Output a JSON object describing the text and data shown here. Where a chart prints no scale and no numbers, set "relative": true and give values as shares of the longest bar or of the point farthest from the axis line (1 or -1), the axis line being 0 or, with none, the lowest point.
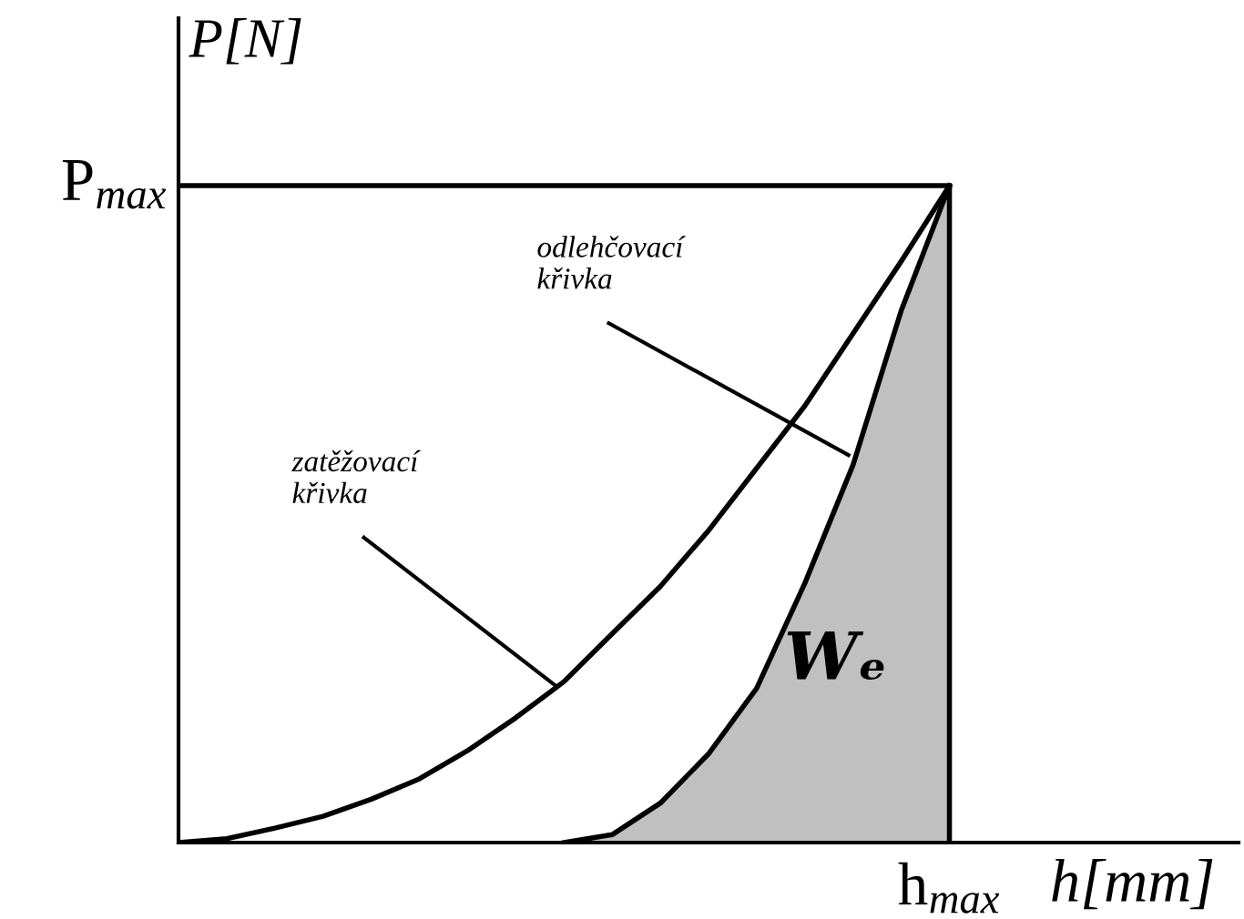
{
  "chart_data": {
    "type": "line",
    "relative": true,
    "xlabel": "h[mm]",
    "ylabel": "P[N]",
    "grid": false,
    "marker": "none",
    "line_style": "solid",
    "categories": [
      null,
      null,
      null,
      null,
      null,
      null,
      null,
      null,
      null,
      null,
      null,
      null,
      null,
      null,
      null,
      null,
      null,
      null,
      null,
      null,
      null,
      null,
      null
    ],
    "series": [
      {
        "color": "#000000",
        "values": [
          0,
          0.006,
          0.022,
          0.04,
          0.066,
          0.097,
          0.14,
          0.19,
          0.245,
          0.318,
          0.39,
          0.475,
          0.57,
          0.665,
          0.775,
          0.885,
          1,
          null,
          null,
          null,
          null,
          null,
          null
        ]
      },
      {
        "type": "area",
        "color": "#c0c0c0",
        "values": [
          null,
          null,
          null,
          null,
          null,
          null,
          null,
          null,
          0,
          0.012,
          0.06,
          0.135,
          0.235,
          0.395,
          0.575,
          0.81,
          1,
          null,
          null,
          null,
          null,
          null,
          null
        ]
      }
    ],
    "ref_lines": [
      {
        "axis": "y",
        "value": 1,
        "label": "P$_{max}$",
        "color": "#000000"
      }
    ],
    "annotations": [
      "odlehčovací\nkřivka",
      "zatěžovací\nkřivka",
      "Wₑ",
      "h$_{max}$"
    ]
  }
}
